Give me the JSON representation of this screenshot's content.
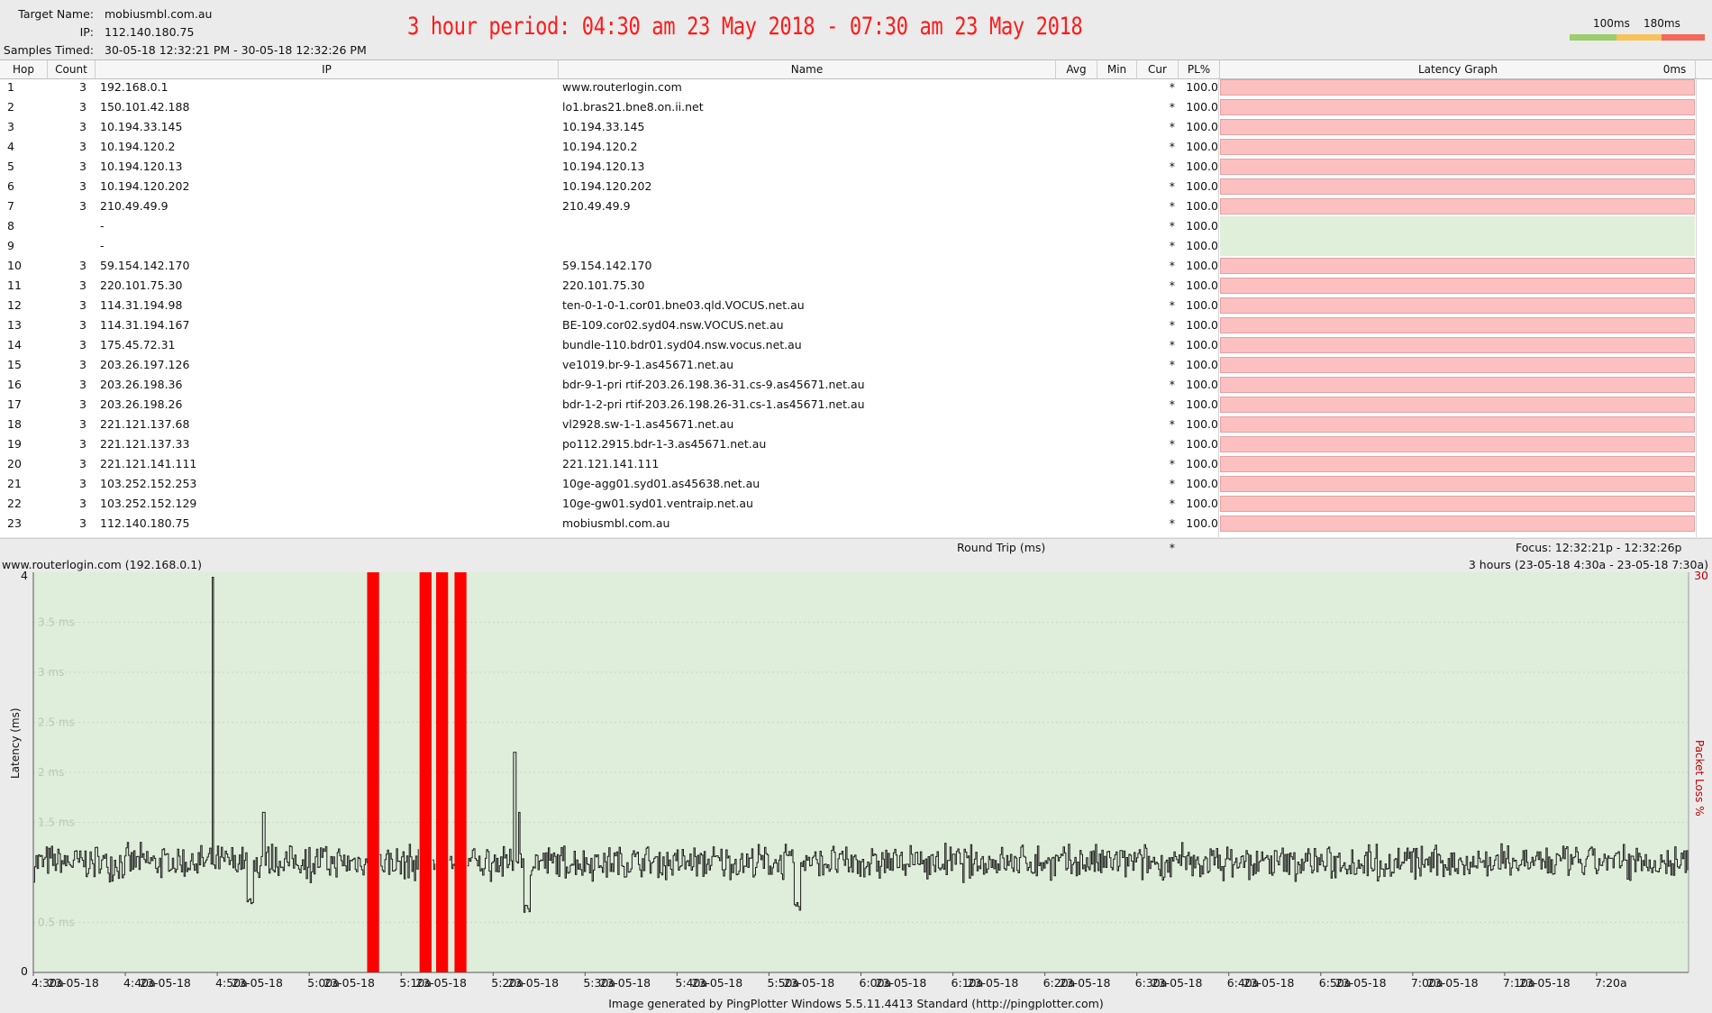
{
  "header": {
    "target_label": "Target Name:",
    "target_value": "mobiusmbl.com.au",
    "ip_label": "IP:",
    "ip_value": "112.140.180.75",
    "samples_label": "Samples Timed:",
    "samples_value": "30-05-18 12:32:21 PM - 30-05-18 12:32:26 PM",
    "period_text": "3 hour period:  04:30 am 23 May 2018 - 07:30 am 23 May 2018",
    "legend_100": "100ms",
    "legend_180": "180ms",
    "scale_colors": [
      "#9bce6c",
      "#f7c25a",
      "#f2685a"
    ]
  },
  "table": {
    "columns": [
      "Hop",
      "Count",
      "IP",
      "Name",
      "Avg",
      "Min",
      "Cur",
      "PL%",
      "Latency Graph",
      "0ms"
    ],
    "rows": [
      {
        "hop": "1",
        "count": "3",
        "ip": "192.168.0.1",
        "name": "www.routerlogin.com",
        "cur": "*",
        "pl": "100.0",
        "loss": true
      },
      {
        "hop": "2",
        "count": "3",
        "ip": "150.101.42.188",
        "name": "lo1.bras21.bne8.on.ii.net",
        "cur": "*",
        "pl": "100.0",
        "loss": true
      },
      {
        "hop": "3",
        "count": "3",
        "ip": "10.194.33.145",
        "name": "10.194.33.145",
        "cur": "*",
        "pl": "100.0",
        "loss": true
      },
      {
        "hop": "4",
        "count": "3",
        "ip": "10.194.120.2",
        "name": "10.194.120.2",
        "cur": "*",
        "pl": "100.0",
        "loss": true
      },
      {
        "hop": "5",
        "count": "3",
        "ip": "10.194.120.13",
        "name": "10.194.120.13",
        "cur": "*",
        "pl": "100.0",
        "loss": true
      },
      {
        "hop": "6",
        "count": "3",
        "ip": "10.194.120.202",
        "name": "10.194.120.202",
        "cur": "*",
        "pl": "100.0",
        "loss": true
      },
      {
        "hop": "7",
        "count": "3",
        "ip": "210.49.49.9",
        "name": "210.49.49.9",
        "cur": "*",
        "pl": "100.0",
        "loss": true
      },
      {
        "hop": "8",
        "count": "",
        "ip": "-",
        "name": "",
        "cur": "*",
        "pl": "100.0",
        "loss": false
      },
      {
        "hop": "9",
        "count": "",
        "ip": "-",
        "name": "",
        "cur": "*",
        "pl": "100.0",
        "loss": false
      },
      {
        "hop": "10",
        "count": "3",
        "ip": "59.154.142.170",
        "name": "59.154.142.170",
        "cur": "*",
        "pl": "100.0",
        "loss": true
      },
      {
        "hop": "11",
        "count": "3",
        "ip": "220.101.75.30",
        "name": "220.101.75.30",
        "cur": "*",
        "pl": "100.0",
        "loss": true
      },
      {
        "hop": "12",
        "count": "3",
        "ip": "114.31.194.98",
        "name": "ten-0-1-0-1.cor01.bne03.qld.VOCUS.net.au",
        "cur": "*",
        "pl": "100.0",
        "loss": true
      },
      {
        "hop": "13",
        "count": "3",
        "ip": "114.31.194.167",
        "name": "BE-109.cor02.syd04.nsw.VOCUS.net.au",
        "cur": "*",
        "pl": "100.0",
        "loss": true
      },
      {
        "hop": "14",
        "count": "3",
        "ip": "175.45.72.31",
        "name": "bundle-110.bdr01.syd04.nsw.vocus.net.au",
        "cur": "*",
        "pl": "100.0",
        "loss": true
      },
      {
        "hop": "15",
        "count": "3",
        "ip": "203.26.197.126",
        "name": "ve1019.br-9-1.as45671.net.au",
        "cur": "*",
        "pl": "100.0",
        "loss": true
      },
      {
        "hop": "16",
        "count": "3",
        "ip": "203.26.198.36",
        "name": "bdr-9-1-pri rtif-203.26.198.36-31.cs-9.as45671.net.au",
        "cur": "*",
        "pl": "100.0",
        "loss": true
      },
      {
        "hop": "17",
        "count": "3",
        "ip": "203.26.198.26",
        "name": "bdr-1-2-pri rtif-203.26.198.26-31.cs-1.as45671.net.au",
        "cur": "*",
        "pl": "100.0",
        "loss": true
      },
      {
        "hop": "18",
        "count": "3",
        "ip": "221.121.137.68",
        "name": "vl2928.sw-1-1.as45671.net.au",
        "cur": "*",
        "pl": "100.0",
        "loss": true
      },
      {
        "hop": "19",
        "count": "3",
        "ip": "221.121.137.33",
        "name": "po112.2915.bdr-1-3.as45671.net.au",
        "cur": "*",
        "pl": "100.0",
        "loss": true
      },
      {
        "hop": "20",
        "count": "3",
        "ip": "221.121.141.111",
        "name": "221.121.141.111",
        "cur": "*",
        "pl": "100.0",
        "loss": true
      },
      {
        "hop": "21",
        "count": "3",
        "ip": "103.252.152.253",
        "name": "10ge-agg01.syd01.as45638.net.au",
        "cur": "*",
        "pl": "100.0",
        "loss": true
      },
      {
        "hop": "22",
        "count": "3",
        "ip": "103.252.152.129",
        "name": "10ge-gw01.syd01.ventraip.net.au",
        "cur": "*",
        "pl": "100.0",
        "loss": true
      },
      {
        "hop": "23",
        "count": "3",
        "ip": "112.140.180.75",
        "name": "mobiusmbl.com.au",
        "cur": "*",
        "pl": "100.0",
        "loss": true
      }
    ],
    "round_trip_label": "Round Trip (ms)",
    "round_trip_cur": "*",
    "focus_text": "Focus: 12:32:21p - 12:32:26p",
    "loss_color": "#fcc0c0",
    "ok_color": "#e0efd9"
  },
  "graph": {
    "title": "www.routerlogin.com (192.168.0.1)",
    "range_text": "3 hours (23-05-18 4:30a - 23-05-18 7:30a)",
    "y_axis_title": "Latency (ms)",
    "pl_axis_title": "Packet Loss %",
    "pl_max_label": "30",
    "y_max_label": "4",
    "y_min_label": "0",
    "background_color": "#dfeeda",
    "line_color": "#1a1a1a",
    "loss_bar_color": "#ff0000"
  },
  "chart_data": {
    "type": "line",
    "title": "www.routerlogin.com (192.168.0.1)",
    "xlabel": "",
    "ylabel": "Latency (ms)",
    "y2label": "Packet Loss %",
    "ylim": [
      0,
      4
    ],
    "y2_max": 30,
    "y_ticks": [
      {
        "value": 0.5,
        "label": "0.5 ms"
      },
      {
        "value": 1.5,
        "label": "1.5 ms"
      },
      {
        "value": 2,
        "label": "2 ms"
      },
      {
        "value": 2.5,
        "label": "2.5 ms"
      },
      {
        "value": 3,
        "label": "3 ms"
      },
      {
        "value": 3.5,
        "label": "3.5 ms"
      }
    ],
    "x_range": [
      "4:30a",
      "7:30a"
    ],
    "x_ticks": [
      "4:30a",
      "4:40a",
      "4:50a",
      "5:00a",
      "5:10a",
      "5:20a",
      "5:30a",
      "5:40a",
      "5:50a",
      "6:00a",
      "6:10a",
      "6:20a",
      "6:30a",
      "6:40a",
      "6:50a",
      "7:00a",
      "7:10a",
      "7:20a"
    ],
    "x_tick_date": "23-05-18",
    "baseline_ms": 1.1,
    "noise_ms": 0.13,
    "spikes": [
      {
        "minute": 19.5,
        "ms": 3.95
      },
      {
        "minute": 25.0,
        "ms": 1.6
      },
      {
        "minute": 52.3,
        "ms": 2.2
      },
      {
        "minute": 52.8,
        "ms": 1.6
      }
    ],
    "dips": [
      {
        "minute": 23.5,
        "ms": 0.68
      },
      {
        "minute": 53.6,
        "ms": 0.6
      },
      {
        "minute": 83.0,
        "ms": 0.62
      }
    ],
    "packet_loss_periods": [
      {
        "start_minute": 36.3,
        "end_minute": 37.6,
        "loss_pct": 100
      },
      {
        "start_minute": 42.0,
        "end_minute": 43.3,
        "loss_pct": 100
      },
      {
        "start_minute": 43.8,
        "end_minute": 45.1,
        "loss_pct": 100
      },
      {
        "start_minute": 45.8,
        "end_minute": 47.1,
        "loss_pct": 100
      }
    ]
  },
  "footer": {
    "text": "Image generated by PingPlotter Windows 5.5.11.4413 Standard (http://pingplotter.com)"
  }
}
